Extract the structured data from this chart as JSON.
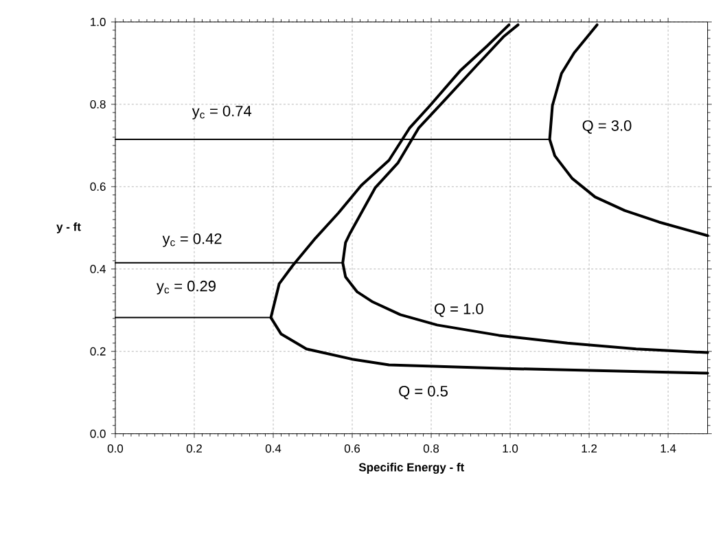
{
  "chart_data": {
    "type": "line",
    "xlabel": "Specific Energy - ft",
    "ylabel": "y - ft",
    "xlim": [
      0,
      1.5
    ],
    "ylim": [
      0,
      1
    ],
    "xticks": [
      {
        "value": 0,
        "label": "0.0"
      },
      0.2,
      0.4,
      0.6,
      0.8,
      {
        "value": 1,
        "label": "1.0"
      },
      1.2,
      1.4
    ],
    "yticks": [
      {
        "value": 0,
        "label": "0.0"
      },
      0.2,
      0.4,
      0.6,
      0.8,
      {
        "value": 1,
        "label": "1.0"
      }
    ],
    "grid": true,
    "marker": "none",
    "line_style": "solid",
    "series": [
      {
        "color": "#000000",
        "x": [
          0.997,
          0.942,
          0.873,
          0.797,
          0.745,
          0.693,
          0.623,
          0.565,
          0.507,
          0.449,
          0.415,
          0.394,
          0.42,
          0.484,
          0.6,
          0.693,
          1.003,
          1.5
        ],
        "values": [
          0.993,
          0.942,
          0.881,
          0.797,
          0.742,
          0.664,
          0.603,
          0.536,
          0.475,
          0.408,
          0.364,
          0.282,
          0.242,
          0.206,
          0.181,
          0.167,
          0.158,
          0.147
        ]
      },
      {
        "color": "#000000",
        "x": [
          1.02,
          0.983,
          0.913,
          0.832,
          0.768,
          0.716,
          0.658,
          0.594,
          0.583,
          0.576,
          0.583,
          0.612,
          0.652,
          0.722,
          0.815,
          0.971,
          1.145,
          1.319,
          1.5
        ],
        "values": [
          0.993,
          0.964,
          0.892,
          0.808,
          0.742,
          0.658,
          0.597,
          0.486,
          0.464,
          0.415,
          0.381,
          0.345,
          0.32,
          0.289,
          0.264,
          0.239,
          0.22,
          0.206,
          0.197
        ]
      },
      {
        "color": "#000000",
        "x": [
          1.22,
          1.162,
          1.13,
          1.107,
          1.1,
          1.113,
          1.157,
          1.215,
          1.29,
          1.377,
          1.5
        ],
        "values": [
          0.993,
          0.925,
          0.875,
          0.797,
          0.715,
          0.675,
          0.62,
          0.575,
          0.542,
          0.514,
          0.481
        ]
      },
      {
        "color": "#000000",
        "x": [
          0,
          0.394
        ],
        "values": [
          0.282,
          0.282
        ]
      },
      {
        "color": "#000000",
        "x": [
          0,
          0.576
        ],
        "values": [
          0.415,
          0.415
        ]
      },
      {
        "color": "#000000",
        "x": [
          0,
          1.1
        ],
        "values": [
          0.715,
          0.715
        ]
      }
    ],
    "annotations": [
      "y$_{c}$ = 0.74",
      "y$_{c}$ = 0.42",
      "y$_{c}$ = 0.29",
      "Q = 3.0",
      "Q = 1.0",
      "Q = 0.5"
    ]
  }
}
